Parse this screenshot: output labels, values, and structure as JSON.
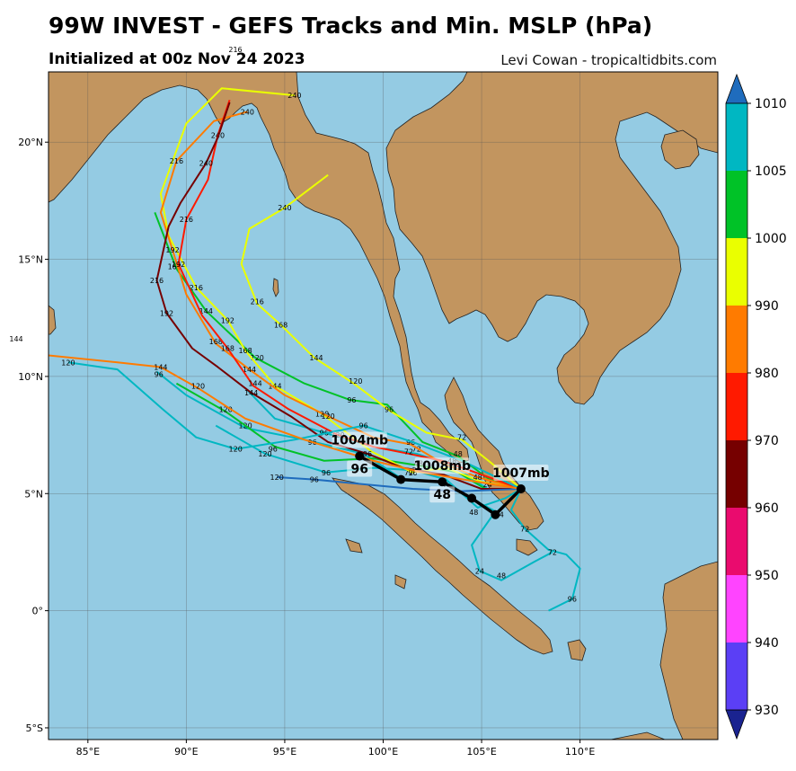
{
  "header": {
    "title": "99W INVEST - GEFS Tracks and Min. MSLP (hPa)",
    "subtitle": "Initialized at 00z Nov 24 2023",
    "credit": "Levi Cowan - tropicaltidbits.com"
  },
  "map": {
    "lon_range": [
      83,
      117
    ],
    "lat_range": [
      -5.5,
      23
    ],
    "ocean_color": "#94cbe3",
    "land_color": "#c2955f",
    "lon_ticks": [
      "85°E",
      "90°E",
      "95°E",
      "100°E",
      "105°E",
      "110°E"
    ],
    "lat_ticks": [
      "5°S",
      "0°",
      "5°N",
      "10°N",
      "15°N",
      "20°N"
    ],
    "stray_labels": {
      "top": "216",
      "left": "144"
    }
  },
  "colorbar": {
    "ticks": [
      "1010",
      "1005",
      "1000",
      "990",
      "980",
      "970",
      "960",
      "950",
      "940",
      "930"
    ],
    "bands": [
      "#1a2390",
      "#5b3ff5",
      "#ff44ff",
      "#ea0b6e",
      "#760000",
      "#ff1a00",
      "#ff7b00",
      "#eaff00",
      "#00c227",
      "#00b7c2",
      "#1f6cbd"
    ]
  },
  "mean_track": {
    "points": [
      {
        "lon": 98.8,
        "lat": 6.6,
        "label": "1004mb",
        "hour": "96"
      },
      {
        "lon": 100.9,
        "lat": 5.6
      },
      {
        "lon": 103.0,
        "lat": 5.5,
        "label": "1008mb",
        "hour": "48"
      },
      {
        "lon": 104.5,
        "lat": 4.8
      },
      {
        "lon": 105.7,
        "lat": 4.1
      },
      {
        "lon": 107.0,
        "lat": 5.2,
        "label": "1007mb"
      }
    ]
  },
  "ensemble_tracks": [
    {
      "color": "#00b7c2",
      "points": [
        [
          107,
          5.2
        ],
        [
          105.8,
          4.2
        ],
        [
          104.2,
          4.9
        ],
        [
          103,
          5.5
        ],
        [
          101,
          5.6
        ],
        [
          99,
          6.7
        ],
        [
          96,
          7.3
        ],
        [
          93,
          7.8
        ],
        [
          90,
          9.2
        ],
        [
          88.5,
          10.2
        ]
      ],
      "labels": [
        [
          "24",
          105.9,
          4.1
        ],
        [
          "48",
          103.2,
          5.4
        ],
        [
          "72",
          101.3,
          5.9
        ],
        [
          "96",
          96.4,
          7.2
        ],
        [
          "120",
          93,
          7.9
        ],
        [
          "96",
          88.6,
          10.1
        ]
      ]
    },
    {
      "color": "#00b7c2",
      "points": [
        [
          107,
          5.2
        ],
        [
          106.2,
          4.8
        ],
        [
          104.8,
          4.4
        ],
        [
          103.2,
          5.6
        ],
        [
          101.5,
          6.0
        ],
        [
          99.5,
          6.1
        ],
        [
          97.1,
          5.9
        ],
        [
          94,
          6.7
        ],
        [
          91.5,
          7.9
        ]
      ],
      "labels": [
        [
          "48",
          104.6,
          4.2
        ],
        [
          "72",
          101.7,
          6.0
        ],
        [
          "96",
          97.1,
          5.9
        ],
        [
          "120",
          94,
          6.7
        ]
      ]
    },
    {
      "color": "#00b7c2",
      "points": [
        [
          107,
          5.2
        ],
        [
          105.3,
          5.2
        ],
        [
          103.5,
          6.2
        ],
        [
          101.7,
          6.7
        ],
        [
          99.5,
          7.0
        ],
        [
          97,
          7.6
        ],
        [
          94.5,
          8.2
        ],
        [
          93,
          9.5
        ]
      ],
      "labels": [
        [
          "24",
          105.3,
          5.4
        ],
        [
          "48",
          103.5,
          6.4
        ],
        [
          "72",
          101.7,
          6.9
        ],
        [
          "96",
          97,
          7.6
        ]
      ]
    },
    {
      "color": "#00c227",
      "points": [
        [
          107,
          5.2
        ],
        [
          105.4,
          5.6
        ],
        [
          103.8,
          6.6
        ],
        [
          102,
          7.2
        ],
        [
          100.2,
          8.8
        ],
        [
          98.3,
          9.0
        ],
        [
          96,
          9.7
        ],
        [
          93.5,
          10.8
        ],
        [
          91,
          12.8
        ],
        [
          89.5,
          14.6
        ],
        [
          88.4,
          17.0
        ]
      ],
      "labels": [
        [
          "48",
          103.8,
          6.7
        ],
        [
          "96",
          98.4,
          9.0
        ],
        [
          "120",
          93.6,
          10.8
        ],
        [
          "144",
          91,
          12.8
        ],
        [
          "168",
          89.4,
          14.7
        ]
      ]
    },
    {
      "color": "#00c227",
      "points": [
        [
          107,
          5.2
        ],
        [
          105.2,
          5.2
        ],
        [
          103.8,
          5.9
        ],
        [
          101.8,
          6.2
        ],
        [
          99.5,
          6.5
        ],
        [
          97,
          6.4
        ],
        [
          94.5,
          7.0
        ],
        [
          92,
          8.5
        ],
        [
          89.5,
          9.7
        ]
      ],
      "labels": [
        [
          "48",
          101.8,
          6.3
        ],
        [
          "96",
          94.4,
          6.9
        ],
        [
          "120",
          92,
          8.6
        ]
      ]
    },
    {
      "color": "#eaff00",
      "points": [
        [
          107,
          5.2
        ],
        [
          105.5,
          6.3
        ],
        [
          104,
          7.3
        ],
        [
          102.2,
          7.6
        ],
        [
          100.4,
          8.5
        ],
        [
          98.5,
          9.7
        ],
        [
          96.5,
          10.8
        ],
        [
          94.8,
          12.2
        ],
        [
          93.6,
          13.1
        ],
        [
          92.8,
          14.8
        ],
        [
          93.2,
          16.3
        ],
        [
          95,
          17.2
        ],
        [
          97.2,
          18.6
        ]
      ],
      "labels": [
        [
          "72",
          104,
          7.4
        ],
        [
          "96",
          100.3,
          8.6
        ],
        [
          "120",
          98.6,
          9.8
        ],
        [
          "144",
          96.6,
          10.8
        ],
        [
          "168",
          94.8,
          12.2
        ],
        [
          "216",
          93.6,
          13.2
        ],
        [
          "240",
          95,
          17.2
        ]
      ]
    },
    {
      "color": "#eaff00",
      "points": [
        [
          107,
          5.2
        ],
        [
          105,
          5.5
        ],
        [
          103.2,
          6.1
        ],
        [
          101.5,
          5.9
        ],
        [
          99.4,
          6.8
        ],
        [
          96.9,
          8.4
        ],
        [
          94.5,
          9.6
        ],
        [
          93,
          11.1
        ],
        [
          92.1,
          12.4
        ],
        [
          90.5,
          13.8
        ],
        [
          89.1,
          16.0
        ],
        [
          88.7,
          17.8
        ],
        [
          90,
          20.8
        ],
        [
          91.8,
          22.3
        ],
        [
          95.5,
          22.0
        ]
      ],
      "labels": [
        [
          "96",
          101.5,
          5.9
        ],
        [
          "120",
          96.9,
          8.4
        ],
        [
          "144",
          94.5,
          9.6
        ],
        [
          "168",
          93,
          11.1
        ],
        [
          "192",
          92.1,
          12.4
        ],
        [
          "216",
          90.5,
          13.8
        ],
        [
          "240",
          95.5,
          22
        ]
      ]
    },
    {
      "color": "#ff7b00",
      "points": [
        [
          107,
          5.2
        ],
        [
          104.8,
          5.7
        ],
        [
          103,
          6.3
        ],
        [
          101.4,
          7.1
        ],
        [
          99.5,
          7.4
        ],
        [
          97.2,
          8.3
        ],
        [
          95,
          9.2
        ],
        [
          93.2,
          10.3
        ],
        [
          91.5,
          11.4
        ],
        [
          90,
          13.5
        ],
        [
          89.3,
          15.4
        ],
        [
          88.7,
          17.0
        ],
        [
          89.5,
          19.2
        ],
        [
          91.4,
          20.9
        ],
        [
          93.1,
          21.3
        ]
      ],
      "labels": [
        [
          "48",
          104.8,
          5.7
        ],
        [
          "96",
          101.4,
          7.2
        ],
        [
          "120",
          97.2,
          8.3
        ],
        [
          "144",
          93.2,
          10.3
        ],
        [
          "168",
          91.5,
          11.5
        ],
        [
          "192",
          89.3,
          15.4
        ],
        [
          "216",
          89.5,
          19.2
        ],
        [
          "240",
          93.1,
          21.3
        ]
      ]
    },
    {
      "color": "#ff1a00",
      "points": [
        [
          107,
          5.2
        ],
        [
          104.7,
          5.9
        ],
        [
          103,
          6.4
        ],
        [
          101.3,
          6.7
        ],
        [
          99.5,
          7.0
        ],
        [
          97.7,
          7.5
        ],
        [
          95.2,
          8.6
        ],
        [
          93.4,
          9.6
        ],
        [
          92.1,
          11.2
        ],
        [
          90.8,
          12.6
        ],
        [
          89.6,
          14.8
        ],
        [
          90,
          16.7
        ],
        [
          91.1,
          18.4
        ],
        [
          91.6,
          20.3
        ],
        [
          92.2,
          21.8
        ]
      ],
      "labels": [
        [
          "72",
          101.3,
          6.8
        ],
        [
          "120",
          97.7,
          7.5
        ],
        [
          "144",
          93.5,
          9.7
        ],
        [
          "168",
          92.1,
          11.2
        ],
        [
          "192",
          89.6,
          14.8
        ],
        [
          "216",
          90,
          16.7
        ],
        [
          "240",
          91.6,
          20.3
        ]
      ]
    },
    {
      "color": "#760000",
      "points": [
        [
          107,
          5.2
        ],
        [
          105,
          5.2
        ],
        [
          103.1,
          5.8
        ],
        [
          101,
          6.1
        ],
        [
          99.2,
          6.7
        ],
        [
          97.2,
          7.2
        ],
        [
          95.3,
          8.3
        ],
        [
          93.3,
          9.3
        ],
        [
          91.6,
          10.4
        ],
        [
          90.3,
          11.2
        ],
        [
          89,
          12.7
        ],
        [
          88.5,
          14.1
        ],
        [
          89.1,
          16.4
        ],
        [
          89.7,
          17.4
        ],
        [
          91,
          19.1
        ],
        [
          91.6,
          20.2
        ],
        [
          92.2,
          21.7
        ]
      ],
      "labels": [
        [
          "96",
          99.2,
          6.7
        ],
        [
          "144",
          93.3,
          9.3
        ],
        [
          "192",
          89,
          12.7
        ],
        [
          "216",
          88.5,
          14.1
        ],
        [
          "240",
          91,
          19.1
        ]
      ]
    },
    {
      "color": "#1f6cbd",
      "points": [
        [
          107,
          5.2
        ],
        [
          104,
          5.1
        ],
        [
          101.5,
          5.2
        ],
        [
          99,
          5.4
        ],
        [
          96.5,
          5.6
        ],
        [
          94.6,
          5.7
        ]
      ],
      "labels": [
        [
          "120",
          94.6,
          5.7
        ],
        [
          "96",
          96.5,
          5.6
        ]
      ]
    },
    {
      "color": "#00b7c2",
      "points": [
        [
          107,
          5.2
        ],
        [
          106.5,
          4.3
        ],
        [
          107.2,
          3.5
        ],
        [
          108.4,
          2.6
        ],
        [
          109.3,
          2.4
        ],
        [
          110,
          1.8
        ],
        [
          109.6,
          0.5
        ],
        [
          108.4,
          0
        ]
      ],
      "labels": [
        [
          "72",
          107.2,
          3.5
        ],
        [
          "96",
          109.6,
          0.5
        ]
      ]
    },
    {
      "color": "#00b7c2",
      "points": [
        [
          107,
          5.2
        ],
        [
          105.5,
          4.0
        ],
        [
          104.5,
          2.8
        ],
        [
          104.9,
          1.7
        ],
        [
          106,
          1.3
        ],
        [
          107.7,
          2.1
        ],
        [
          108.6,
          2.5
        ]
      ],
      "labels": [
        [
          "24",
          104.9,
          1.7
        ],
        [
          "48",
          106,
          1.5
        ],
        [
          "72",
          108.6,
          2.5
        ]
      ]
    },
    {
      "color": "#00b7c2",
      "points": [
        [
          107,
          5.2
        ],
        [
          104,
          6.4
        ],
        [
          101.5,
          7.2
        ],
        [
          99,
          7.9
        ],
        [
          95.5,
          7.3
        ],
        [
          92.5,
          6.9
        ],
        [
          90.5,
          7.4
        ],
        [
          88.8,
          8.6
        ],
        [
          86.5,
          10.3
        ],
        [
          84,
          10.6
        ]
      ],
      "labels": [
        [
          "96",
          99,
          7.9
        ],
        [
          "120",
          92.5,
          6.9
        ],
        [
          "120",
          84,
          10.6
        ]
      ]
    },
    {
      "color": "#ff7b00",
      "points": [
        [
          107,
          5.2
        ],
        [
          104.8,
          5.5
        ],
        [
          102,
          5.9
        ],
        [
          99.5,
          6.4
        ],
        [
          96,
          7.3
        ],
        [
          93,
          8.2
        ],
        [
          90.6,
          9.5
        ],
        [
          88.7,
          10.4
        ],
        [
          86.5,
          10.6
        ],
        [
          83,
          10.9
        ]
      ],
      "labels": [
        [
          "120",
          90.6,
          9.6
        ],
        [
          "144",
          88.7,
          10.4
        ]
      ]
    }
  ]
}
